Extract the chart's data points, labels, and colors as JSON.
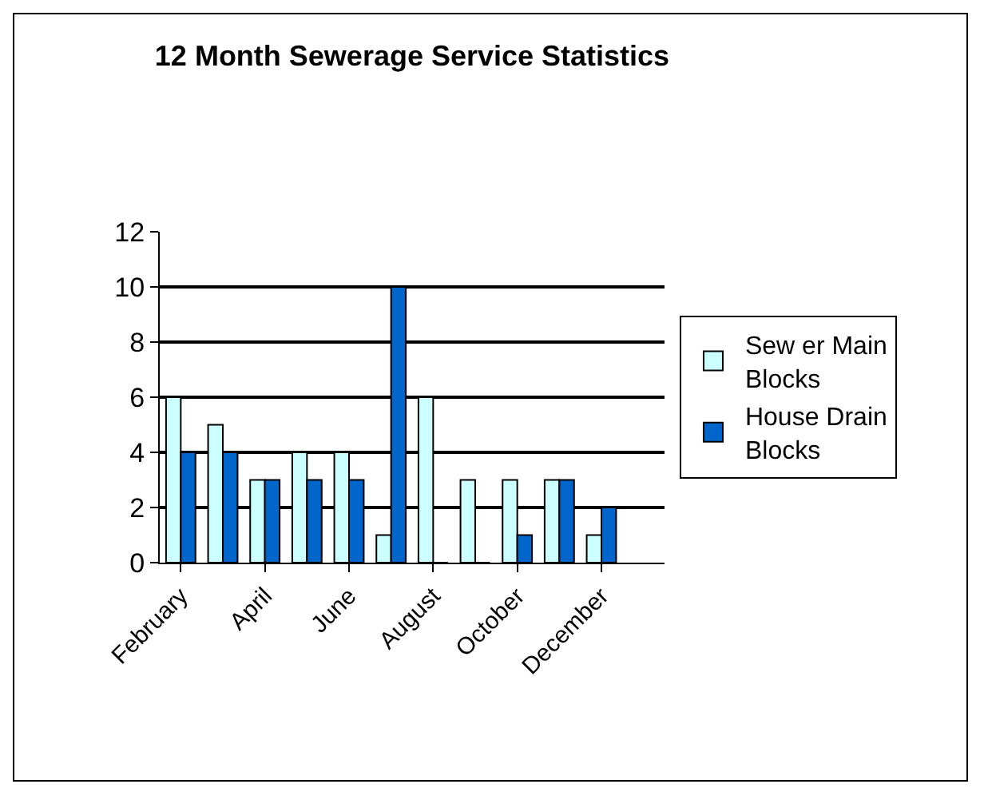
{
  "chart_data": {
    "type": "bar",
    "title": "12 Month Sewerage Service Statistics",
    "categories": [
      "February",
      null,
      "April",
      null,
      "June",
      null,
      "August",
      null,
      "October",
      null,
      "December",
      null
    ],
    "series": [
      {
        "name": "Sew er Main Blocks",
        "color": "#ccffff",
        "values": [
          6,
          5,
          3,
          4,
          4,
          1,
          6,
          3,
          3,
          3,
          1,
          null
        ]
      },
      {
        "name": "House Drain Blocks",
        "color": "#0066cc",
        "values": [
          4,
          4,
          3,
          3,
          3,
          10,
          0,
          0,
          1,
          3,
          2,
          null
        ]
      }
    ],
    "ylim": [
      0,
      12
    ],
    "yticks": [
      0,
      2,
      4,
      6,
      8,
      10,
      12
    ],
    "grid": "y",
    "legend": "right"
  }
}
